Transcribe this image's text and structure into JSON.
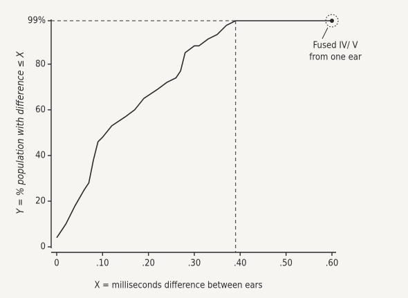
{
  "chart_data": {
    "type": "line",
    "x_label": "X = milliseconds difference between ears",
    "y_label": "Y = % population with difference ≤ X",
    "x": [
      0.0,
      0.02,
      0.04,
      0.06,
      0.07,
      0.08,
      0.09,
      0.1,
      0.12,
      0.15,
      0.17,
      0.19,
      0.22,
      0.24,
      0.26,
      0.27,
      0.28,
      0.3,
      0.31,
      0.33,
      0.35,
      0.37,
      0.39,
      0.6
    ],
    "values": [
      4,
      10,
      18,
      25,
      28,
      38,
      46,
      48,
      53,
      57,
      60,
      65,
      69,
      72,
      74,
      77,
      85,
      88,
      88,
      91,
      93,
      97,
      99,
      99
    ],
    "color": "#2a2a2a",
    "xlim": [
      0,
      0.6
    ],
    "xticks": [
      0,
      {
        "value": 0.1,
        "label": ".10"
      },
      {
        "value": 0.2,
        "label": ".20"
      },
      {
        "value": 0.3,
        "label": ".30"
      },
      {
        "value": 0.4,
        "label": ".40"
      },
      {
        "value": 0.5,
        "label": ".50"
      },
      {
        "value": 0.6,
        "label": ".60"
      }
    ],
    "ylim": [
      0,
      99
    ],
    "yticks": [
      0,
      20,
      40,
      60,
      80,
      {
        "value": 99,
        "label": "99%"
      }
    ],
    "hline": 99,
    "vline": 0.39,
    "annotation": [
      "Fused IV/ V",
      "from one ear"
    ]
  }
}
